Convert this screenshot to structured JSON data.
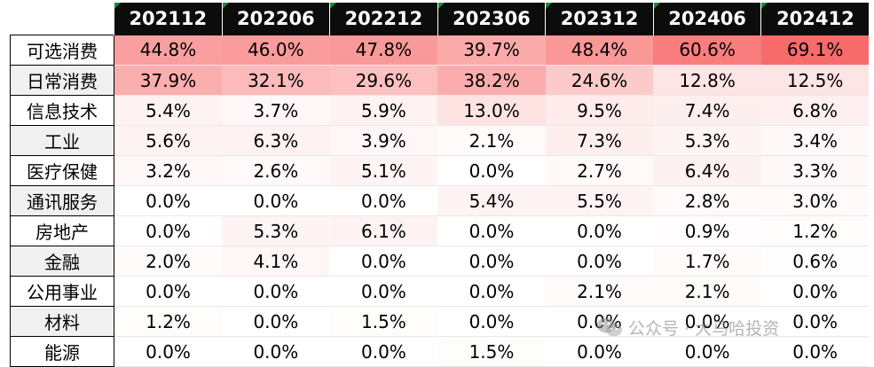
{
  "chart_data": {
    "type": "table",
    "columns": [
      "202112",
      "202206",
      "202212",
      "202306",
      "202312",
      "202406",
      "202412"
    ],
    "rows": [
      {
        "label": "可选消费",
        "values": [
          "44.8%",
          "46.0%",
          "47.8%",
          "39.7%",
          "48.4%",
          "60.6%",
          "69.1%"
        ]
      },
      {
        "label": "日常消费",
        "values": [
          "37.9%",
          "32.1%",
          "29.6%",
          "38.2%",
          "24.6%",
          "12.8%",
          "12.5%"
        ]
      },
      {
        "label": "信息技术",
        "values": [
          "5.4%",
          "3.7%",
          "5.9%",
          "13.0%",
          "9.5%",
          "7.4%",
          "6.8%"
        ]
      },
      {
        "label": "工业",
        "values": [
          "5.6%",
          "6.3%",
          "3.9%",
          "2.1%",
          "7.3%",
          "5.3%",
          "3.4%"
        ]
      },
      {
        "label": "医疗保健",
        "values": [
          "3.2%",
          "2.6%",
          "5.1%",
          "0.0%",
          "2.7%",
          "6.4%",
          "3.3%"
        ]
      },
      {
        "label": "通讯服务",
        "values": [
          "0.0%",
          "0.0%",
          "0.0%",
          "5.4%",
          "5.5%",
          "2.8%",
          "3.0%"
        ]
      },
      {
        "label": "房地产",
        "values": [
          "0.0%",
          "5.3%",
          "6.1%",
          "0.0%",
          "0.0%",
          "0.9%",
          "1.2%"
        ]
      },
      {
        "label": "金融",
        "values": [
          "2.0%",
          "4.1%",
          "0.0%",
          "0.0%",
          "0.0%",
          "1.7%",
          "0.6%"
        ]
      },
      {
        "label": "公用事业",
        "values": [
          "0.0%",
          "0.0%",
          "0.0%",
          "0.0%",
          "2.1%",
          "2.1%",
          "0.0%"
        ]
      },
      {
        "label": "材料",
        "values": [
          "1.2%",
          "0.0%",
          "1.5%",
          "0.0%",
          "0.0%",
          "0.0%",
          "0.0%"
        ]
      },
      {
        "label": "能源",
        "values": [
          "0.0%",
          "0.0%",
          "0.0%",
          "1.5%",
          "0.0%",
          "0.0%",
          "0.0%"
        ]
      }
    ],
    "heatmap": {
      "low_color": "#ffffff",
      "high_color": "#f86b6b"
    },
    "header_color": "#0c0c0c"
  },
  "watermark": "公众号 · 大马哈投资"
}
